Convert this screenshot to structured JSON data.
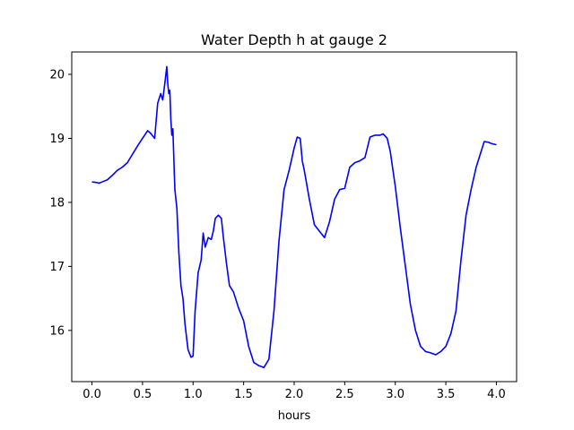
{
  "chart_data": {
    "type": "line",
    "title": "Water Depth h at gauge 2",
    "xlabel": "hours",
    "ylabel": "",
    "xlim": [
      -0.2,
      4.2
    ],
    "ylim": [
      15.2,
      20.35
    ],
    "xticks": [
      0.0,
      0.5,
      1.0,
      1.5,
      2.0,
      2.5,
      3.0,
      3.5,
      4.0
    ],
    "xtick_labels": [
      "0.0",
      "0.5",
      "1.0",
      "1.5",
      "2.0",
      "2.5",
      "3.0",
      "3.5",
      "4.0"
    ],
    "yticks": [
      16,
      17,
      18,
      19,
      20
    ],
    "ytick_labels": [
      "16",
      "17",
      "18",
      "19",
      "20"
    ],
    "grid": false,
    "series": [
      {
        "name": "",
        "color": "#0000ff",
        "x": [
          0.0,
          0.05,
          0.07,
          0.1,
          0.15,
          0.2,
          0.25,
          0.3,
          0.35,
          0.4,
          0.45,
          0.5,
          0.55,
          0.58,
          0.62,
          0.65,
          0.68,
          0.7,
          0.72,
          0.74,
          0.75,
          0.76,
          0.77,
          0.78,
          0.79,
          0.8,
          0.82,
          0.84,
          0.86,
          0.88,
          0.9,
          0.92,
          0.95,
          0.98,
          1.0,
          1.02,
          1.05,
          1.08,
          1.1,
          1.12,
          1.15,
          1.18,
          1.2,
          1.22,
          1.25,
          1.28,
          1.3,
          1.33,
          1.36,
          1.4,
          1.45,
          1.5,
          1.55,
          1.6,
          1.65,
          1.7,
          1.75,
          1.8,
          1.85,
          1.9,
          1.95,
          2.0,
          2.03,
          2.06,
          2.08,
          2.1,
          2.15,
          2.2,
          2.25,
          2.3,
          2.35,
          2.4,
          2.45,
          2.5,
          2.55,
          2.6,
          2.65,
          2.7,
          2.75,
          2.8,
          2.85,
          2.88,
          2.92,
          2.95,
          3.0,
          3.05,
          3.1,
          3.15,
          3.2,
          3.25,
          3.3,
          3.35,
          3.4,
          3.45,
          3.5,
          3.55,
          3.6,
          3.65,
          3.7,
          3.75,
          3.8,
          3.85,
          3.88,
          3.92,
          3.95,
          4.0
        ],
        "y": [
          18.32,
          18.31,
          18.3,
          18.32,
          18.35,
          18.42,
          18.5,
          18.55,
          18.62,
          18.75,
          18.88,
          19.0,
          19.12,
          19.08,
          19.0,
          19.55,
          19.7,
          19.6,
          19.85,
          20.12,
          19.85,
          19.7,
          19.75,
          19.3,
          19.05,
          19.15,
          18.2,
          17.9,
          17.2,
          16.7,
          16.5,
          16.1,
          15.7,
          15.58,
          15.6,
          16.3,
          16.9,
          17.1,
          17.52,
          17.3,
          17.45,
          17.42,
          17.55,
          17.75,
          17.8,
          17.75,
          17.45,
          17.05,
          16.7,
          16.6,
          16.35,
          16.15,
          15.75,
          15.5,
          15.45,
          15.42,
          15.55,
          16.3,
          17.4,
          18.2,
          18.5,
          18.85,
          19.02,
          19.0,
          18.65,
          18.5,
          18.05,
          17.65,
          17.55,
          17.45,
          17.7,
          18.05,
          18.2,
          18.22,
          18.55,
          18.62,
          18.65,
          18.7,
          19.02,
          19.05,
          19.05,
          19.07,
          19.0,
          18.8,
          18.25,
          17.6,
          17.0,
          16.4,
          16.0,
          15.75,
          15.67,
          15.65,
          15.62,
          15.67,
          15.75,
          15.95,
          16.3,
          17.1,
          17.8,
          18.2,
          18.55,
          18.8,
          18.95,
          18.94,
          18.92,
          18.9
        ]
      }
    ]
  }
}
